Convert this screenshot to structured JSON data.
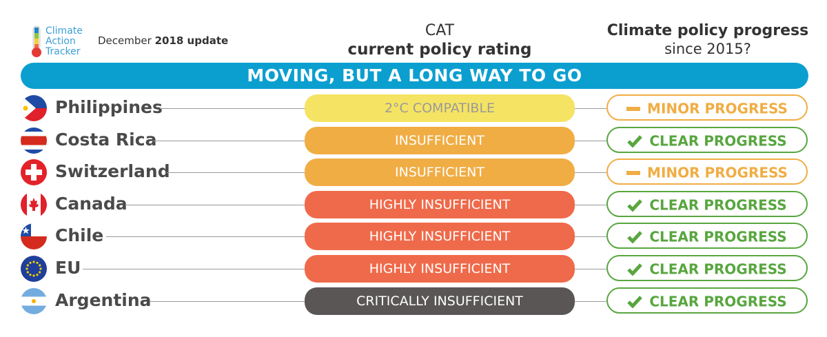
{
  "header": {
    "logo_line1": "Climate",
    "logo_line2": "Action",
    "logo_line3": "Tracker",
    "update_prefix": "December",
    "update_bold": "2018 update",
    "rating_title_line1": "CAT",
    "rating_title_line2": "current policy rating",
    "progress_title_line1": "Climate policy progress",
    "progress_title_line2": "since 2015?"
  },
  "banner": "MOVING, BUT A LONG WAY TO GO",
  "colors": {
    "banner": "#0b9fd0",
    "compatible_2c": "#f5e363",
    "insufficient": "#f0ad44",
    "highly_insufficient": "#ef6a4a",
    "critically_insufficient": "#5a5656",
    "minor_progress": "#f0ad44",
    "clear_progress": "#58a63f"
  },
  "rows": [
    {
      "country": "Philippines",
      "flag": "philippines-flag-icon",
      "rating": "2°C COMPATIBLE",
      "progress": "MINOR PROGRESS",
      "progress_icon": "dash-icon"
    },
    {
      "country": "Costa Rica",
      "flag": "costa-rica-flag-icon",
      "rating": "INSUFFICIENT",
      "progress": "CLEAR PROGRESS",
      "progress_icon": "check-icon"
    },
    {
      "country": "Switzerland",
      "flag": "switzerland-flag-icon",
      "rating": "INSUFFICIENT",
      "progress": "MINOR PROGRESS",
      "progress_icon": "dash-icon"
    },
    {
      "country": "Canada",
      "flag": "canada-flag-icon",
      "rating": "HIGHLY INSUFFICIENT",
      "progress": "CLEAR PROGRESS",
      "progress_icon": "check-icon"
    },
    {
      "country": "Chile",
      "flag": "chile-flag-icon",
      "rating": "HIGHLY INSUFFICIENT",
      "progress": "CLEAR PROGRESS",
      "progress_icon": "check-icon"
    },
    {
      "country": "EU",
      "flag": "eu-flag-icon",
      "rating": "HIGHLY INSUFFICIENT",
      "progress": "CLEAR PROGRESS",
      "progress_icon": "check-icon"
    },
    {
      "country": "Argentina",
      "flag": "argentina-flag-icon",
      "rating": "CRITICALLY INSUFFICIENT",
      "progress": "CLEAR PROGRESS",
      "progress_icon": "check-icon"
    }
  ]
}
